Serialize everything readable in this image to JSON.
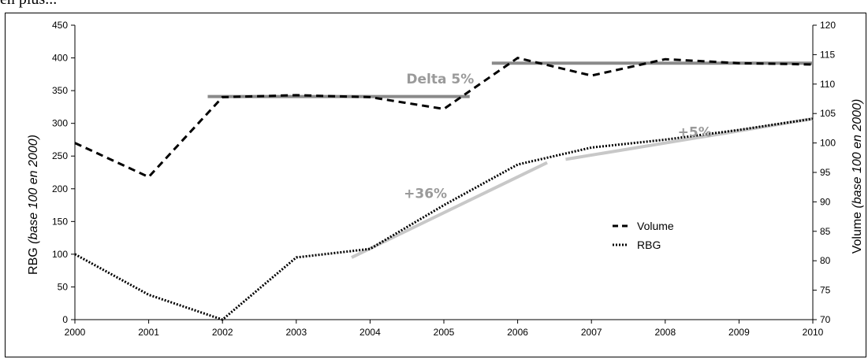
{
  "page": {
    "cut_text": "en plus..."
  },
  "chart_data": {
    "type": "line",
    "x": [
      2000,
      2001,
      2002,
      2003,
      2004,
      2005,
      2006,
      2007,
      2008,
      2009,
      2010
    ],
    "xlim": [
      2000,
      2010
    ],
    "y_left": {
      "label_main": "RBG",
      "label_italic": "(base 100 en 2000)",
      "lim": [
        0,
        450
      ],
      "ticks": [
        0,
        50,
        100,
        150,
        200,
        250,
        300,
        350,
        400,
        450
      ]
    },
    "y_right": {
      "label_main": "Volume",
      "label_italic": "(base 100 en 2000)",
      "lim": [
        70,
        120
      ],
      "ticks": [
        70,
        75,
        80,
        85,
        90,
        95,
        100,
        105,
        110,
        115,
        120
      ]
    },
    "series": [
      {
        "name": "Volume",
        "axis": "left",
        "style": "dashed",
        "values": [
          270,
          218,
          340,
          343,
          340,
          322,
          400,
          373,
          398,
          392,
          390
        ]
      },
      {
        "name": "RBG",
        "axis": "left",
        "style": "dotted",
        "values": [
          100,
          38,
          0,
          95,
          108,
          175,
          237,
          263,
          275,
          290,
          307
        ]
      }
    ],
    "trend_lines": [
      {
        "axis": "left",
        "color": "#8a8a8a",
        "x": [
          2001.8,
          2005.35
        ],
        "y": [
          341,
          341
        ]
      },
      {
        "axis": "left",
        "color": "#8a8a8a",
        "x": [
          2005.65,
          2010
        ],
        "y": [
          392,
          392
        ]
      },
      {
        "axis": "left",
        "color": "#c8c8c8",
        "x": [
          2003.75,
          2006.4
        ],
        "y": [
          95,
          240
        ]
      },
      {
        "axis": "left",
        "color": "#c8c8c8",
        "x": [
          2006.65,
          2010
        ],
        "y": [
          245,
          307
        ]
      }
    ],
    "annotations": [
      {
        "text": "Delta 5%",
        "x": 2004.95,
        "y": 361
      },
      {
        "text": "+36%",
        "x": 2004.75,
        "y": 186
      },
      {
        "text": "+5%",
        "x": 2008.4,
        "y": 280
      }
    ],
    "legend": {
      "position": "center-right",
      "items": [
        {
          "label": "Volume",
          "style": "dashed"
        },
        {
          "label": "RBG",
          "style": "dotted"
        }
      ]
    },
    "grid": false
  }
}
